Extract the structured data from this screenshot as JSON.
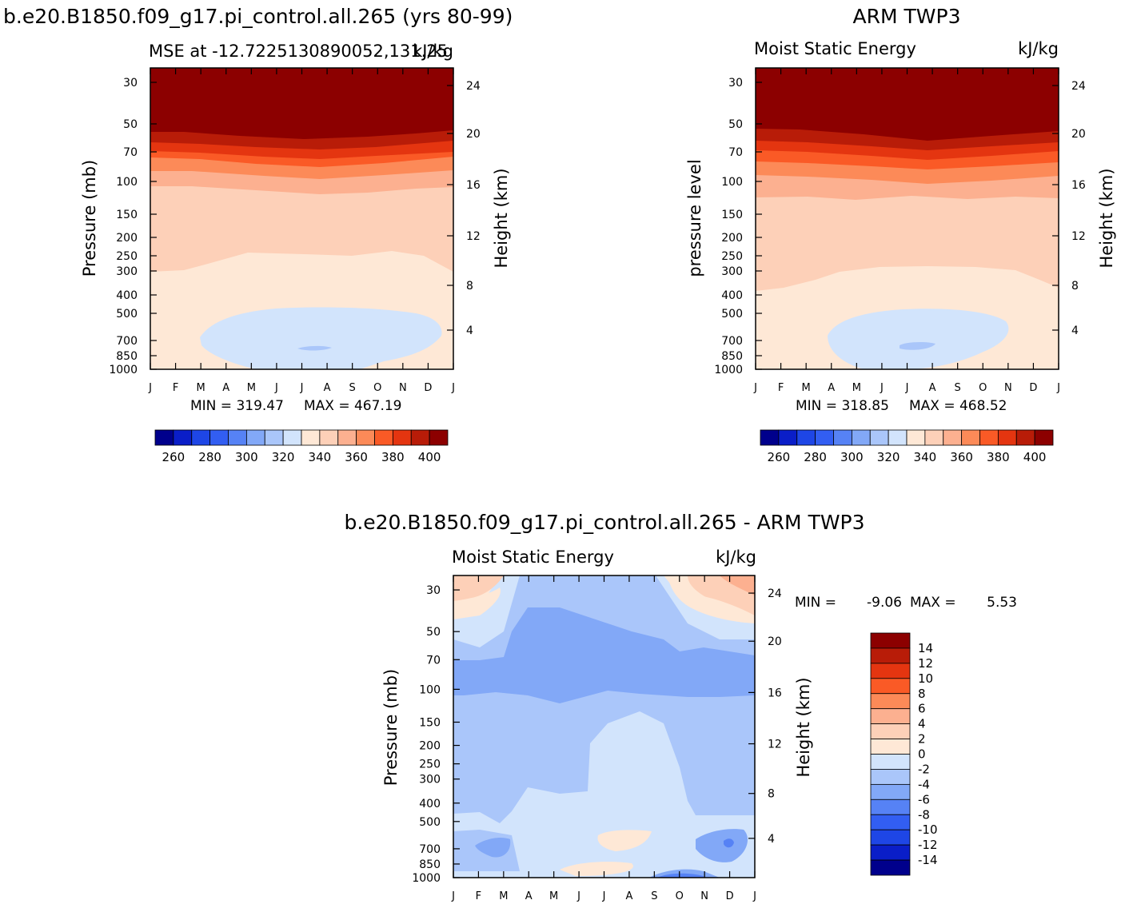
{
  "colors": {
    "mse_levels": [
      "#00008c",
      "#0a1ec8",
      "#1e46e6",
      "#325ef2",
      "#5682f5",
      "#82a8f7",
      "#aac6fa",
      "#d2e4fc",
      "#fee8d6",
      "#fdd0b8",
      "#fcb090",
      "#fc8a58",
      "#fa5a26",
      "#e43510",
      "#b81c08",
      "#8c0000"
    ],
    "diff_levels": [
      "#00008c",
      "#0a1ec8",
      "#1e46e6",
      "#325ef2",
      "#5682f5",
      "#82a8f7",
      "#aac6fa",
      "#d2e4fc",
      "#fee8d6",
      "#fdd0b8",
      "#fcb090",
      "#fc8a58",
      "#fa5a26",
      "#e43510",
      "#b81c08",
      "#8c0000"
    ]
  },
  "diff_title": "b.e20.B1850.f09_g17.pi_control.all.265 - ARM TWP3",
  "chart_data": [
    {
      "type": "heatmap",
      "panel": "model",
      "title": "b.e20.B1850.f09_g17.pi_control.all.265 (yrs 80-99)",
      "subtitle": "MSE at -12.7225130890052,131.25",
      "units": "kJ/kg",
      "ylabel": "Pressure (mb)",
      "y2label": "Height (km)",
      "x_ticks": [
        "J",
        "F",
        "M",
        "A",
        "M",
        "J",
        "J",
        "A",
        "S",
        "O",
        "N",
        "D",
        "J"
      ],
      "p_ticks": [
        "30",
        "50",
        "70",
        "100",
        "150",
        "200",
        "250",
        "300",
        "400",
        "500",
        "700",
        "850",
        "1000"
      ],
      "h_ticks": [
        "24",
        "20",
        "16",
        "12",
        "8",
        "4"
      ],
      "min_label": "MIN = 319.47",
      "max_label": "MAX = 467.19",
      "min": 319.47,
      "max": 467.19,
      "colorbar_labels": [
        "260",
        "280",
        "300",
        "320",
        "340",
        "360",
        "380",
        "400"
      ],
      "level_bounds": [
        0.28,
        0.4,
        0.48,
        0.56,
        0.62,
        0.7,
        0.8,
        0.86,
        0.92
      ]
    },
    {
      "type": "heatmap",
      "panel": "obs",
      "title": "ARM TWP3",
      "subtitle": "Moist Static Energy",
      "units": "kJ/kg",
      "ylabel": "pressure level",
      "y2label": "Height (km)",
      "x_ticks": [
        "J",
        "F",
        "M",
        "A",
        "M",
        "J",
        "J",
        "A",
        "S",
        "O",
        "N",
        "D",
        "J"
      ],
      "p_ticks": [
        "30",
        "50",
        "70",
        "100",
        "150",
        "200",
        "250",
        "300",
        "400",
        "500",
        "700",
        "850",
        "1000"
      ],
      "h_ticks": [
        "24",
        "20",
        "16",
        "12",
        "8",
        "4"
      ],
      "min_label": "MIN = 318.85",
      "max_label": "MAX = 468.52",
      "min": 318.85,
      "max": 468.52,
      "colorbar_labels": [
        "260",
        "280",
        "300",
        "320",
        "340",
        "360",
        "380",
        "400"
      ]
    },
    {
      "type": "heatmap",
      "panel": "diff",
      "subtitle": "Moist Static Energy",
      "units": "kJ/kg",
      "ylabel": "Pressure (mb)",
      "y2label": "Height (km)",
      "x_ticks": [
        "J",
        "F",
        "M",
        "A",
        "M",
        "J",
        "J",
        "A",
        "S",
        "O",
        "N",
        "D",
        "J"
      ],
      "p_ticks": [
        "30",
        "50",
        "70",
        "100",
        "150",
        "200",
        "250",
        "300",
        "400",
        "500",
        "700",
        "850",
        "1000"
      ],
      "h_ticks": [
        "24",
        "20",
        "16",
        "12",
        "8",
        "4"
      ],
      "min_label": "MIN =",
      "min_value": "-9.06",
      "max_label": "MAX =",
      "max_value": "5.53",
      "min": -9.06,
      "max": 5.53,
      "colorbar_labels": [
        "14",
        "12",
        "10",
        "8",
        "6",
        "4",
        "2",
        "0",
        "-2",
        "-4",
        "-6",
        "-8",
        "-10",
        "-12",
        "-14"
      ]
    }
  ]
}
